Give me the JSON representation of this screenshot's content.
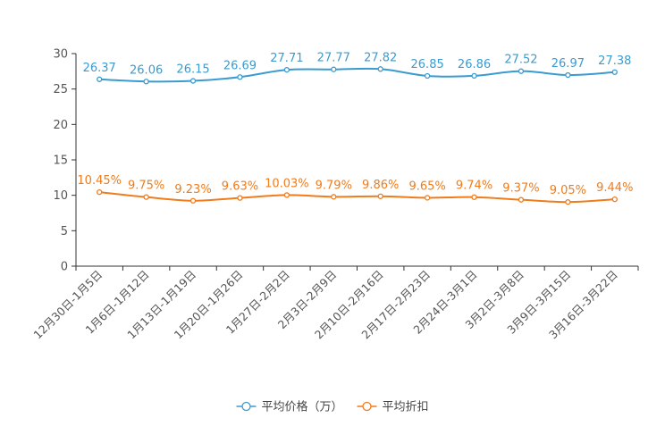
{
  "chart_data": {
    "type": "line",
    "title": "",
    "xlabel": "",
    "ylabel": "",
    "ylim": [
      0,
      30
    ],
    "yticks": [
      0,
      5,
      10,
      15,
      20,
      25,
      30
    ],
    "grid": false,
    "legend_position": "bottom",
    "categories": [
      "12月30日-1月5日",
      "1月6日-1月12日",
      "1月13日-1月19日",
      "1月20日-1月26日",
      "1月27日-2月2日",
      "2月3日-2月9日",
      "2月10日-2月16日",
      "2月17日-2月23日",
      "2月24日-3月1日",
      "3月2日-3月8日",
      "3月9日-3月15日",
      "3月16日-3月22日"
    ],
    "series": [
      {
        "name": "平均价格（万）",
        "color": "#3a9bd0",
        "values": [
          26.37,
          26.06,
          26.15,
          26.69,
          27.71,
          27.77,
          27.82,
          26.85,
          26.86,
          27.52,
          26.97,
          27.38
        ],
        "labels": [
          "26.37",
          "26.06",
          "26.15",
          "26.69",
          "27.71",
          "27.77",
          "27.82",
          "26.85",
          "26.86",
          "27.52",
          "26.97",
          "27.38"
        ]
      },
      {
        "name": "平均折扣",
        "color": "#f07c1c",
        "values": [
          10.45,
          9.75,
          9.23,
          9.63,
          10.03,
          9.79,
          9.86,
          9.65,
          9.74,
          9.37,
          9.05,
          9.44
        ],
        "labels": [
          "10.45%",
          "9.75%",
          "9.23%",
          "9.63%",
          "10.03%",
          "9.79%",
          "9.86%",
          "9.65%",
          "9.74%",
          "9.37%",
          "9.05%",
          "9.44%"
        ]
      }
    ]
  }
}
